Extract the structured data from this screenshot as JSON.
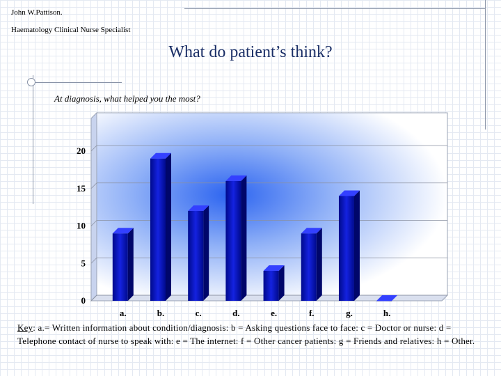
{
  "header": {
    "author": "John W.Pattison.",
    "role": "Haematology Clinical Nurse Specialist"
  },
  "slide": {
    "title": "What do patient’s think?",
    "question": "At diagnosis, what helped you the most?"
  },
  "key": {
    "label": "Key",
    "text": ": a.= Written information about condition/diagnosis: b = Asking questions face to face: c = Doctor or nurse: d = Telephone contact of nurse to speak with: e = The internet: f = Other cancer patients: g = Friends and relatives: h = Other."
  },
  "chart_data": {
    "type": "bar",
    "categories": [
      "a.",
      "b.",
      "c.",
      "d.",
      "e.",
      "f.",
      "g.",
      "h."
    ],
    "values": [
      9,
      19,
      12,
      16,
      4,
      9,
      14,
      0
    ],
    "title": "",
    "xlabel": "",
    "ylabel": "",
    "ylim": [
      0,
      20
    ],
    "yticks": [
      0,
      5,
      10,
      15,
      20
    ],
    "grid": true,
    "legend": "none",
    "bar_color": "#0a14c8"
  }
}
